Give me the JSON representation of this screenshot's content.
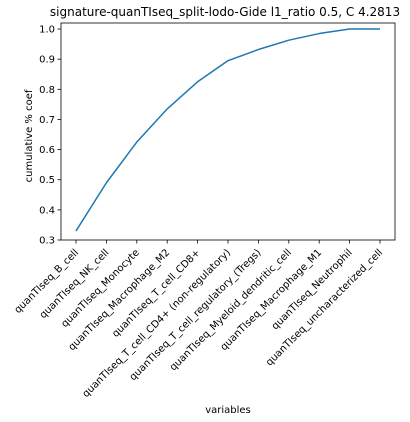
{
  "chart_data": {
    "type": "line",
    "title": "signature-quanTIseq_split-lodo-Gide l1_ratio 0.5, C 4.2813",
    "xlabel": "variables",
    "ylabel": "cumulative % coef",
    "categories": [
      "quanTIseq_B_cell",
      "quanTIseq_NK_cell",
      "quanTIseq_Monocyte",
      "quanTIseq_Macrophage_M2",
      "quanTIseq_T_cell_CD8+",
      "quanTIseq_T_cell_CD4+ (non-regulatory)",
      "quanTIseq_T_cell_regulatory_(Tregs)",
      "quanTIseq_Myeloid_dendritic_cell",
      "quanTIseq_Macrophage_M1",
      "quanTIseq_Neutrophil",
      "quanTIseq_uncharacterized_cell"
    ],
    "series": [
      {
        "values": [
          0.33,
          0.49,
          0.625,
          0.735,
          0.825,
          0.895,
          0.932,
          0.963,
          0.985,
          1.0,
          1.0
        ]
      }
    ],
    "ylim": [
      0.3,
      1.02
    ],
    "yticks": [
      0.3,
      0.4,
      0.5,
      0.6,
      0.7,
      0.8,
      0.9,
      1.0
    ],
    "ytick_labels": [
      "0.3",
      "0.4",
      "0.5",
      "0.6",
      "0.7",
      "0.8",
      "0.9",
      "1.0"
    ],
    "grid": false,
    "line_color": "#1f77b4"
  }
}
